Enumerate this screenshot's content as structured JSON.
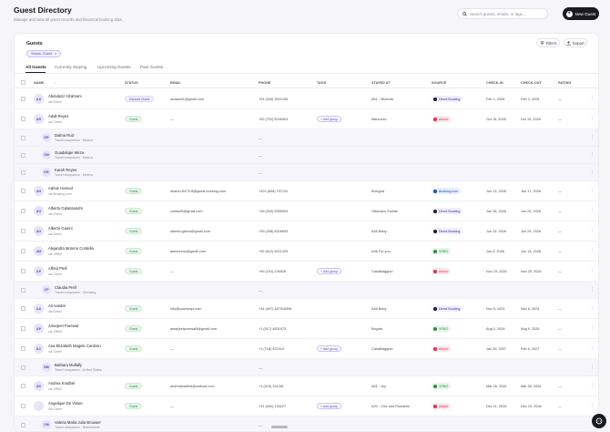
{
  "header": {
    "title": "Guest Directory",
    "subtitle": "Manage and view all guest records and historical booking data.",
    "search_placeholder": "Search guests, emails, or tags...",
    "new_guest_label": "New Guest"
  },
  "card": {
    "title": "Guests",
    "filter_chip": "Status: Guest",
    "filters_label": "Filters",
    "export_label": "Export"
  },
  "tabs": [
    "All Guests",
    "Currently Staying",
    "Upcoming Guests",
    "Past Guests"
  ],
  "columns": [
    "NAME",
    "STATUS",
    "EMAIL",
    "PHONE",
    "TAGS",
    "STAYED AT",
    "SOURCE",
    "CHECK-IN",
    "CHECK-OUT",
    "RATING"
  ],
  "rows": [
    {
      "type": "main",
      "initials": "AA",
      "name": "Abdulaziz Alzahrani",
      "sub": "via Direct",
      "status": "Deposit Guest",
      "email": "alzaaziz1@gmail.com",
      "phone": "+91 (343) 3521255",
      "tag": "",
      "stayed": "A51 - Miranda",
      "source": "Direct Booking",
      "source_kind": "direct",
      "checkin": "Feb 1, 2026",
      "checkout": "Feb 3, 2026",
      "rating": "—"
    },
    {
      "type": "main",
      "initials": "AR",
      "name": "Adall Reyes",
      "sub": "via Cherri",
      "status": "Guest",
      "email": "—",
      "phone": "+52 (722) 5246303",
      "tag": "+ Add group",
      "stayed": "Marcuzzo",
      "source": "Airbnb",
      "source_kind": "airbnb",
      "checkin": "Oct 15, 2026",
      "checkout": "Oct 19, 2026",
      "rating": "—"
    },
    {
      "type": "sub",
      "initials": "DR",
      "name": "Dalma Ruiz",
      "sub": "Travel companion · Mexico",
      "phone": "—"
    },
    {
      "type": "sub",
      "initials": "GM",
      "name": "Guadalupe Meza",
      "sub": "Travel companion · Mexico",
      "phone": "—"
    },
    {
      "type": "sub",
      "initials": "KR",
      "name": "Karah Reyes",
      "sub": "Travel companion · Mexico",
      "phone": "—"
    },
    {
      "type": "main",
      "initials": "AH",
      "name": "Adrian Hamud",
      "sub": "via Booking.com",
      "status": "Guest",
      "email": "ahamu.847378@guest.booking.com",
      "phone": "+420 (608) 757120",
      "tag": "",
      "stayed": "Bologna",
      "source": "Booking.com",
      "source_kind": "booking",
      "checkin": "Jun 13, 2026",
      "checkout": "Jun 17, 2026",
      "rating": "—"
    },
    {
      "type": "main",
      "initials": "AG",
      "name": "Alberto Galassandro",
      "sub": "via Direct",
      "status": "Guest",
      "email": "contact5@gmail.com",
      "phone": "+39 (340) 9995304",
      "tag": "",
      "stayed": "Ottaviano Sunlite",
      "source": "Direct Booking",
      "source_kind": "direct",
      "checkin": "Jun 26, 2026",
      "checkout": "Jun 29, 2026",
      "rating": "—"
    },
    {
      "type": "main",
      "initials": "AG",
      "name": "Alberto Gianni",
      "sub": "via Direct",
      "status": "Guest",
      "email": "alberto.gianni@gmail.com",
      "phone": "+39 (338) 8326693",
      "tag": "",
      "stayed": "A46 Baby",
      "source": "Direct Booking",
      "source_kind": "direct",
      "checkin": "Jun 24, 2026",
      "checkout": "Jun 29, 2026",
      "rating": "—"
    },
    {
      "type": "main",
      "initials": "AM",
      "name": "Alejandra Moreno Cordella",
      "sub": "via VRBO",
      "status": "Guest",
      "email": "alemoreno@gmail.com",
      "phone": "+52 (612) 6221329",
      "tag": "",
      "stayed": "A36 For you",
      "source": "VRBO",
      "source_kind": "vrbo",
      "checkin": "Jun 9, 2026",
      "checkout": "Jun 13, 2026",
      "rating": "—"
    },
    {
      "type": "main",
      "initials": "AP",
      "name": "Alfred Prell",
      "sub": "via Cherri",
      "status": "Guest",
      "email": "—",
      "phone": "+49 (151) 226526",
      "tag": "+ Add group",
      "stayed": "CasaMaggiori",
      "source": "Airbnb",
      "source_kind": "airbnb",
      "checkin": "Nov 19, 2026",
      "checkout": "Nov 25, 2026",
      "rating": "—"
    },
    {
      "type": "sub",
      "initials": "CP",
      "name": "Claudia Prell",
      "sub": "Travel companion · Germany",
      "phone": "—"
    },
    {
      "type": "main",
      "initials": "AA",
      "name": "Ali Aandal",
      "sub": "via Direct",
      "status": "Guest",
      "email": "info@yourstays.com",
      "phone": "+44 (497) 487918496",
      "tag": "",
      "stayed": "A46 Baby",
      "source": "Direct Booking",
      "source_kind": "direct",
      "checkin": "Nov 5, 2024",
      "checkout": "Nov 6, 2024",
      "rating": "—"
    },
    {
      "type": "main",
      "initials": "AP",
      "name": "Amarjeet Purewal",
      "sub": "via VRBO",
      "status": "Guest",
      "email": "amarjeetpurewal5@gmail.com",
      "phone": "+1 (517) 4831973",
      "tag": "",
      "stayed": "Bogota",
      "source": "VRBO",
      "source_kind": "vrbo",
      "checkin": "Aug 2, 2026",
      "checkout": "Aug 9, 2026",
      "rating": "—"
    },
    {
      "type": "main",
      "initials": "AC",
      "name": "Ana Elizabeth Magele Cardoso",
      "sub": "via Cherri",
      "status": "Guest",
      "email": "—",
      "phone": "+1 (718) 422919",
      "tag": "+ Add group",
      "stayed": "CasaMaggiori",
      "source": "Airbnb",
      "source_kind": "airbnb",
      "checkin": "Jan 30, 2027",
      "checkout": "Feb 6, 2027",
      "rating": "—"
    },
    {
      "type": "sub",
      "initials": "BM",
      "name": "Barbara Mullally",
      "sub": "Travel companion · United States",
      "phone": "—"
    },
    {
      "type": "main",
      "initials": "AK",
      "name": "Andrea Kradbel",
      "sub": "via VRBO",
      "status": "Guest",
      "email": "andreakradbel@outlook.com",
      "phone": "+1 (510) 331281",
      "tag": "",
      "stayed": "A51 - Joy",
      "source": "VRBO",
      "source_kind": "vrbo",
      "checkin": "Mar 26, 2026",
      "checkout": "Mar 30, 2026",
      "rating": "—"
    },
    {
      "type": "main",
      "initials": "",
      "name": "Angelique De Visser",
      "sub": "via Cherri",
      "status": "Guest",
      "email": "—",
      "phone": "+31 (630) 130227",
      "tag": "+ Add group",
      "stayed": "A20 - Chic and Romantic",
      "source": "Airbnb",
      "source_kind": "airbnb",
      "checkin": "Dec 11, 2026",
      "checkout": "Dec 15, 2026",
      "rating": "—"
    },
    {
      "type": "sub",
      "initials": "VM",
      "name": "Valeria Maria Julia Brouwer",
      "sub": "Travel companion · Netherlands",
      "phone": "—"
    }
  ],
  "colors": {
    "accent": "#5b4ec7",
    "dark": "#1a1a23",
    "guest_badge": "#2f8a44",
    "airbnb": "#e0304b",
    "booking": "#1f4fbf"
  }
}
